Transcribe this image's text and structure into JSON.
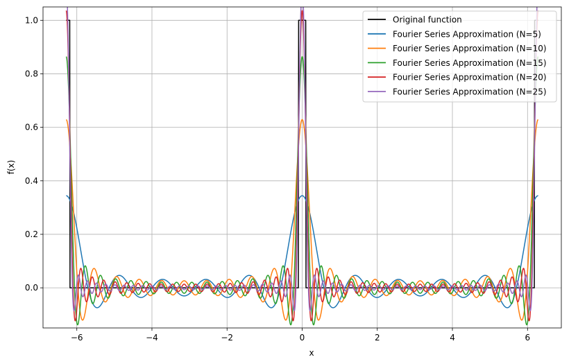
{
  "chart_data": {
    "type": "line",
    "title": "",
    "xlabel": "x",
    "ylabel": "f(x)",
    "xlim": [
      -6.9,
      6.9
    ],
    "ylim": [
      -0.15,
      1.05
    ],
    "grid": true,
    "legend_position": "top-right",
    "x_ticks": [
      -6,
      -4,
      -2,
      0,
      2,
      4,
      6
    ],
    "x_tick_labels": [
      "−6",
      "−4",
      "−2",
      "0",
      "2",
      "4",
      "6"
    ],
    "y_ticks": [
      0.0,
      0.2,
      0.4,
      0.6,
      0.8,
      1.0
    ],
    "y_tick_labels": [
      "0.0",
      "0.2",
      "0.4",
      "0.6",
      "0.8",
      "1.0"
    ],
    "x_range": [
      -6.2832,
      6.2832
    ],
    "original_function": {
      "peak_width": 0.1,
      "peak_height": 1.0
    },
    "series": [
      {
        "name": "Original function",
        "color": "#000000",
        "terms": null
      },
      {
        "name": "Fourier Series Approximation (N=5)",
        "color": "#1f77b4",
        "terms": 5
      },
      {
        "name": "Fourier Series Approximation (N=10)",
        "color": "#ff7f0e",
        "terms": 10
      },
      {
        "name": "Fourier Series Approximation (N=15)",
        "color": "#2ca02c",
        "terms": 15
      },
      {
        "name": "Fourier Series Approximation (N=20)",
        "color": "#d62728",
        "terms": 20
      },
      {
        "name": "Fourier Series Approximation (N=25)",
        "color": "#9467bd",
        "terms": 25
      }
    ]
  }
}
